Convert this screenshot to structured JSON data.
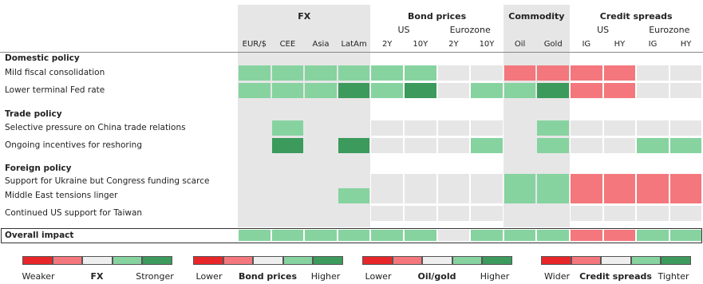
{
  "header": {
    "groups": [
      {
        "label": "FX",
        "start": 0,
        "span": 4
      },
      {
        "label": "Bond prices",
        "start": 4,
        "span": 4
      },
      {
        "label": "Commodity",
        "start": 8,
        "span": 2
      },
      {
        "label": "Credit spreads",
        "start": 10,
        "span": 4
      }
    ],
    "subgroups": [
      {
        "label": "US",
        "start": 4,
        "span": 2
      },
      {
        "label": "Eurozone",
        "start": 6,
        "span": 2
      },
      {
        "label": "US",
        "start": 10,
        "span": 2
      },
      {
        "label": "Eurozone",
        "start": 12,
        "span": 2
      }
    ],
    "columns": [
      "EUR/$",
      "CEE",
      "Asia",
      "LatAm",
      "2Y",
      "10Y",
      "2Y",
      "10Y",
      "Oil",
      "Gold",
      "IG",
      "HY",
      "IG",
      "HY"
    ],
    "shaded_groups": [
      0,
      2
    ]
  },
  "rows": [
    {
      "label": "Domestic policy",
      "section": true
    },
    {
      "label": "Mild fiscal consolidation",
      "cells": [
        "#86d3a0",
        "#86d3a0",
        "#86d3a0",
        "#86d3a0",
        "#86d3a0",
        "#86d3a0",
        null,
        null,
        "#f3777c",
        "#f3777c",
        "#f3777c",
        "#f3777c",
        null,
        null
      ]
    },
    {
      "label": "Lower terminal Fed rate",
      "cells": [
        "#86d3a0",
        "#86d3a0",
        "#86d3a0",
        "#3b9a5c",
        "#86d3a0",
        "#3b9a5c",
        null,
        "#86d3a0",
        "#86d3a0",
        "#3b9a5c",
        "#f3777c",
        "#f3777c",
        null,
        null
      ]
    },
    {
      "label": "Trade policy",
      "section": true
    },
    {
      "label": "Selective pressure on China trade relations",
      "cells": [
        null,
        "#86d3a0",
        null,
        null,
        null,
        null,
        null,
        null,
        null,
        "#86d3a0",
        null,
        null,
        null,
        null
      ]
    },
    {
      "label": "Ongoing incentives for reshoring",
      "cells": [
        null,
        "#3b9a5c",
        null,
        "#3b9a5c",
        null,
        null,
        null,
        "#86d3a0",
        null,
        "#86d3a0",
        null,
        null,
        "#86d3a0",
        "#86d3a0"
      ]
    },
    {
      "label": "Foreign policy",
      "section": true
    },
    {
      "label": "Support for Ukraine but Congress funding scarce",
      "cells": [
        null,
        null,
        null,
        null,
        null,
        null,
        null,
        null,
        "#86d3a0",
        "#86d3a0",
        "#f3777c",
        "#f3777c",
        "#f3777c",
        "#f3777c"
      ]
    },
    {
      "label": "Middle East tensions linger",
      "cells": [
        null,
        null,
        null,
        "#86d3a0",
        null,
        null,
        null,
        null,
        "#86d3a0",
        "#86d3a0",
        "#f3777c",
        "#f3777c",
        "#f3777c",
        "#f3777c"
      ]
    },
    {
      "label": "Continued US support for Taiwan",
      "cells": [
        null,
        null,
        null,
        null,
        null,
        null,
        null,
        null,
        null,
        null,
        null,
        null,
        null,
        null
      ]
    }
  ],
  "overall": {
    "label": "Overall impact",
    "cells": [
      "#86d3a0",
      "#86d3a0",
      "#86d3a0",
      "#86d3a0",
      "#86d3a0",
      "#86d3a0",
      null,
      "#86d3a0",
      "#86d3a0",
      "#86d3a0",
      "#f3777c",
      "#f3777c",
      "#86d3a0",
      "#86d3a0"
    ]
  },
  "legend": {
    "colors": [
      "#e8262a",
      "#f3777c",
      "#eeeeee",
      "#86d3a0",
      "#3b9a5c"
    ],
    "scales": [
      {
        "low": "Weaker",
        "name": "FX",
        "high": "Stronger"
      },
      {
        "low": "Lower",
        "name": "Bond prices",
        "high": "Higher"
      },
      {
        "low": "Lower",
        "name": "Oil/gold",
        "high": "Higher"
      },
      {
        "low": "Wider",
        "name": "Credit spreads",
        "high": "Tighter"
      }
    ]
  }
}
